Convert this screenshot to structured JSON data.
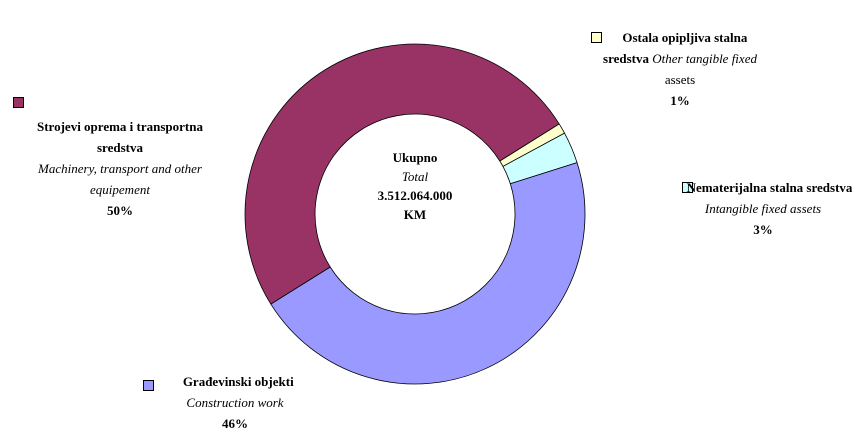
{
  "chart_data": {
    "type": "donut",
    "center": {
      "title": "Ukupno",
      "subtitle": "Total",
      "total": "3.512.064.000 KM"
    },
    "categories": [
      "Ostala opipljiva stalna sredstva",
      "Nematerijalna stalna sredstva",
      "Građevinski objekti",
      "Strojevi oprema i transportna sredstva"
    ],
    "english": [
      "Other tangible fixed",
      "Intangible fixed assets",
      "Construction work",
      "Machinery, transport and other equipement"
    ],
    "english_tail": "assets",
    "values": [
      1,
      3,
      46,
      50
    ],
    "value_labels": [
      "1%",
      "3%",
      "46%",
      "50%"
    ],
    "colors": [
      "#ffffcc",
      "#ccffff",
      "#9999ff",
      "#993366"
    ]
  }
}
